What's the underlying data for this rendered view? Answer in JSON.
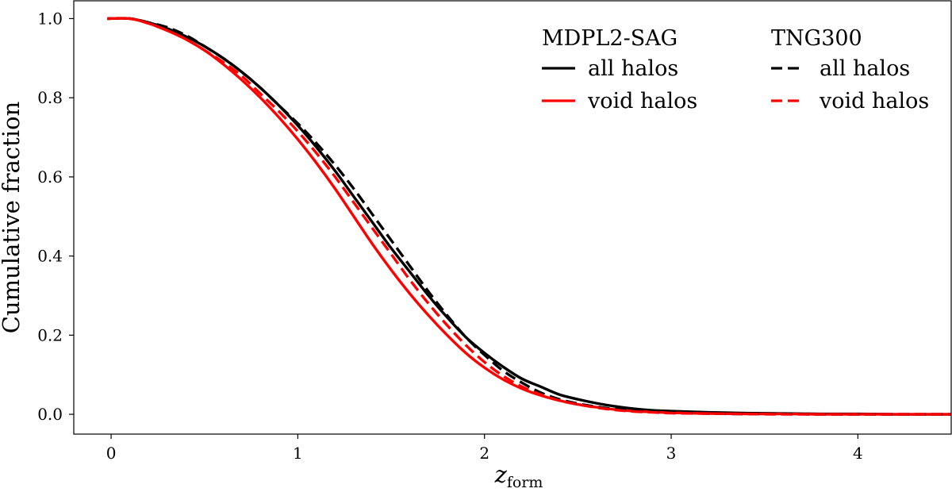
{
  "chart_data": {
    "type": "line",
    "title": "",
    "xlabel": "z",
    "xlabel_sub": "form",
    "ylabel": "Cumulative fraction",
    "xlim": [
      -0.2,
      4.5
    ],
    "ylim": [
      -0.05,
      1.045
    ],
    "xticks": [
      0,
      1,
      2,
      3,
      4
    ],
    "xtick_labels": [
      "0",
      "1",
      "2",
      "3",
      "4"
    ],
    "yticks": [
      0.0,
      0.2,
      0.4,
      0.6,
      0.8,
      1.0
    ],
    "ytick_labels": [
      "0.0",
      "0.2",
      "0.4",
      "0.6",
      "0.8",
      "1.0"
    ],
    "grid": false,
    "legend": {
      "placement": "top-right",
      "groups": [
        {
          "title": "MDPL2-SAG",
          "entries": [
            "all halos",
            "void halos"
          ]
        },
        {
          "title": "TNG300",
          "entries": [
            "all halos",
            "void halos"
          ]
        }
      ]
    },
    "x": [
      -0.02,
      0.1,
      0.2,
      0.3,
      0.4,
      0.5,
      0.6,
      0.7,
      0.8,
      0.9,
      1.0,
      1.1,
      1.2,
      1.3,
      1.4,
      1.5,
      1.6,
      1.7,
      1.8,
      1.9,
      2.0,
      2.1,
      2.2,
      2.3,
      2.4,
      2.5,
      2.6,
      2.7,
      2.8,
      2.9,
      3.0,
      3.2,
      3.4,
      3.6,
      3.8,
      4.0,
      4.2,
      4.5
    ],
    "series": [
      {
        "name": "MDPL2-SAG all halos",
        "color": "#000000",
        "dash": "solid",
        "values": [
          1.0,
          1.0,
          0.99,
          0.975,
          0.955,
          0.93,
          0.9,
          0.865,
          0.825,
          0.78,
          0.73,
          0.675,
          0.615,
          0.55,
          0.485,
          0.42,
          0.36,
          0.3,
          0.245,
          0.195,
          0.155,
          0.12,
          0.09,
          0.07,
          0.05,
          0.038,
          0.028,
          0.02,
          0.014,
          0.01,
          0.008,
          0.005,
          0.003,
          0.002,
          0.001,
          0.001,
          0.0,
          0.0
        ]
      },
      {
        "name": "MDPL2-SAG void halos",
        "color": "#ff0000",
        "dash": "solid",
        "values": [
          1.0,
          1.0,
          0.988,
          0.97,
          0.948,
          0.92,
          0.885,
          0.845,
          0.8,
          0.75,
          0.695,
          0.635,
          0.57,
          0.5,
          0.43,
          0.365,
          0.305,
          0.25,
          0.2,
          0.155,
          0.118,
          0.088,
          0.065,
          0.048,
          0.035,
          0.025,
          0.018,
          0.012,
          0.008,
          0.006,
          0.004,
          0.002,
          0.001,
          0.001,
          0.0,
          0.0,
          0.0,
          0.0
        ]
      },
      {
        "name": "TNG300 all halos",
        "color": "#000000",
        "dash": "dashed",
        "values": [
          1.0,
          1.0,
          0.99,
          0.978,
          0.958,
          0.93,
          0.9,
          0.865,
          0.825,
          0.78,
          0.735,
          0.685,
          0.63,
          0.57,
          0.505,
          0.44,
          0.375,
          0.31,
          0.25,
          0.195,
          0.15,
          0.11,
          0.08,
          0.055,
          0.038,
          0.027,
          0.019,
          0.013,
          0.009,
          0.006,
          0.004,
          0.002,
          0.001,
          0.001,
          0.0,
          0.0,
          0.0,
          0.0
        ]
      },
      {
        "name": "TNG300 void halos",
        "color": "#ff0000",
        "dash": "dashed",
        "values": [
          1.0,
          1.0,
          0.988,
          0.97,
          0.948,
          0.92,
          0.89,
          0.855,
          0.81,
          0.765,
          0.715,
          0.66,
          0.6,
          0.535,
          0.47,
          0.405,
          0.34,
          0.28,
          0.225,
          0.175,
          0.132,
          0.097,
          0.07,
          0.05,
          0.035,
          0.025,
          0.017,
          0.011,
          0.007,
          0.005,
          0.003,
          0.002,
          0.001,
          0.0,
          0.0,
          0.0,
          0.0,
          0.0
        ]
      }
    ]
  }
}
